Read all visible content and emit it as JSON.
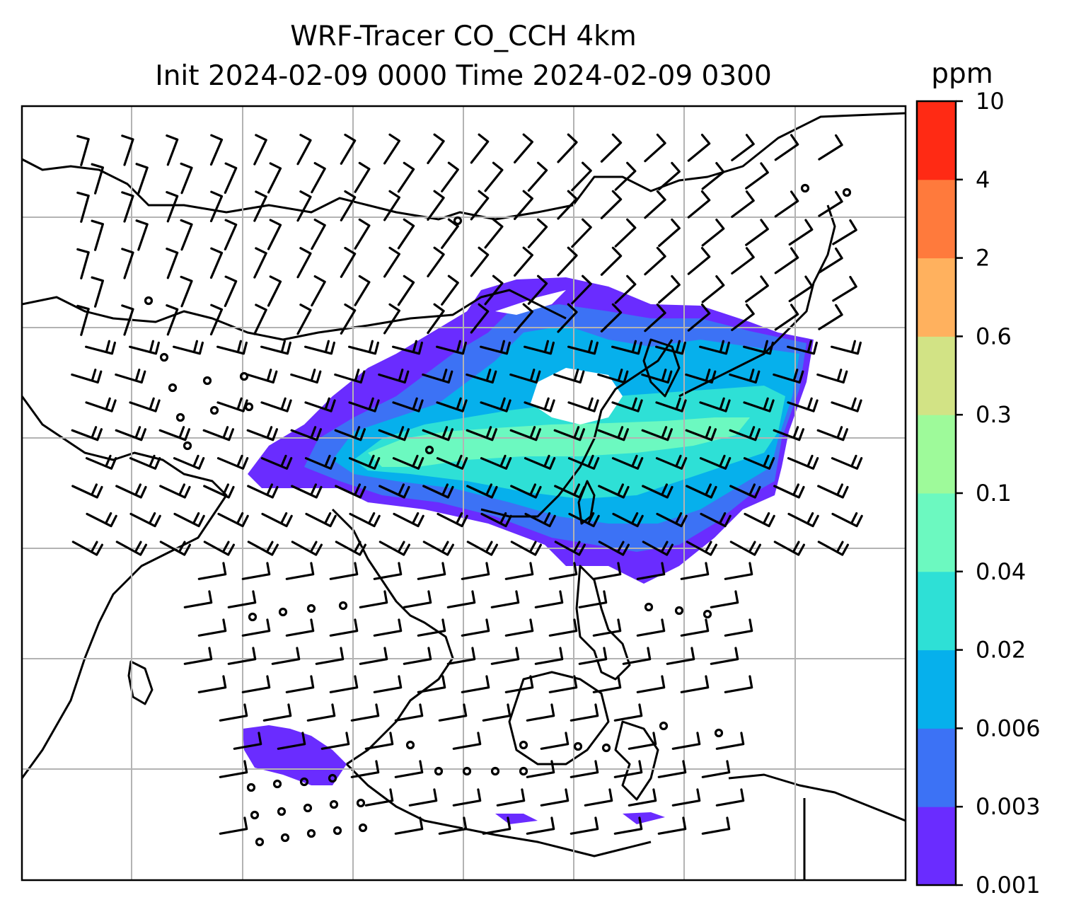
{
  "title": {
    "line1": "WRF-Tracer CO_CCH 4km",
    "line2": "Init 2024-02-09 0000 Time 2024-02-09 0300"
  },
  "colorbar": {
    "unit": "ppm",
    "levels": [
      "0.001",
      "0.003",
      "0.006",
      "0.02",
      "0.04",
      "0.1",
      "0.3",
      "0.6",
      "2",
      "4",
      "10"
    ],
    "colors": [
      "#6a2cff",
      "#3c72f5",
      "#06b0ec",
      "#2ee0d6",
      "#6cf9c0",
      "#9efa9a",
      "#d2e385",
      "#ffb15e",
      "#ff7a3c",
      "#ff2a14"
    ]
  },
  "map": {
    "field": "CO_CCH tracer concentration",
    "wind": "wind barbs",
    "gridlines": true,
    "coastlines": true
  }
}
